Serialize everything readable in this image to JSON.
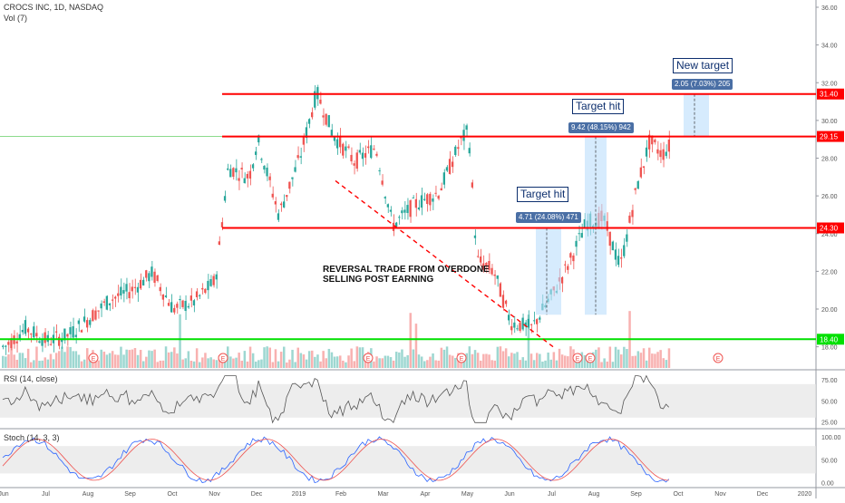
{
  "header": {
    "title": "CROCS INC, 1D, NASDAQ",
    "volume_label": "Vol (7)"
  },
  "indicators": {
    "rsi_label": "RSI (14, close)",
    "stoch_label": "Stoch (14, 3, 3)"
  },
  "annotations": {
    "reversal_line1": "REVERSAL TRADE FROM OVERDONE",
    "reversal_line2": "SELLING POST EARNING",
    "target1_label": "Target hit",
    "target1_measure": "4.71 (24.08%) 471",
    "target2_label": "Target hit",
    "target2_measure": "9.42 (48.15%) 942",
    "target3_label": "New target",
    "target3_measure": "2.05 (7.03%) 205"
  },
  "colors": {
    "up": "#26a69a",
    "down": "#ef5350",
    "resistance": "#ff0000",
    "support": "#00e000",
    "measure_box": "#bbdefb",
    "label_bg": "#4a6fa5"
  },
  "chart_data": {
    "type": "candlestick",
    "price_axis": {
      "ylim": [
        17.2,
        36.4
      ],
      "ticks": [
        "36.00",
        "34.00",
        "32.00",
        "30.00",
        "28.00",
        "26.00",
        "24.00",
        "22.00",
        "20.00",
        "18.00"
      ]
    },
    "time_axis": [
      "Jun",
      "Jul",
      "Aug",
      "Sep",
      "Oct",
      "Nov",
      "Dec",
      "2019",
      "Feb",
      "Mar",
      "Apr",
      "May",
      "Jun",
      "Jul",
      "Aug",
      "Sep",
      "Oct",
      "Nov",
      "Dec",
      "2020"
    ],
    "levels": [
      {
        "price": 31.4,
        "label": "31.40",
        "color": "resistance"
      },
      {
        "price": 29.15,
        "label": "29.15",
        "color": "resistance"
      },
      {
        "price": 24.3,
        "label": "24.30",
        "color": "resistance"
      },
      {
        "price": 18.4,
        "label": "18.40",
        "color": "support"
      }
    ],
    "close_series_anchor": [
      {
        "m": 0,
        "p": 18.0
      },
      {
        "m": 0.5,
        "p": 19.0
      },
      {
        "m": 1,
        "p": 18.3
      },
      {
        "m": 1.5,
        "p": 18.6
      },
      {
        "m": 2,
        "p": 19.5
      },
      {
        "m": 2.5,
        "p": 20.5
      },
      {
        "m": 3,
        "p": 21.0
      },
      {
        "m": 3.5,
        "p": 21.9
      },
      {
        "m": 4,
        "p": 20.0
      },
      {
        "m": 4.5,
        "p": 20.4
      },
      {
        "m": 5,
        "p": 21.5
      },
      {
        "m": 5.3,
        "p": 27.5
      },
      {
        "m": 5.8,
        "p": 27.0
      },
      {
        "m": 6,
        "p": 29.0
      },
      {
        "m": 6.5,
        "p": 25.0
      },
      {
        "m": 7,
        "p": 28.0
      },
      {
        "m": 7.4,
        "p": 31.5
      },
      {
        "m": 7.8,
        "p": 29.2
      },
      {
        "m": 8.3,
        "p": 27.8
      },
      {
        "m": 8.8,
        "p": 28.6
      },
      {
        "m": 9.2,
        "p": 24.4
      },
      {
        "m": 9.7,
        "p": 25.5
      },
      {
        "m": 10.3,
        "p": 26.2
      },
      {
        "m": 10.8,
        "p": 28.8
      },
      {
        "m": 11.0,
        "p": 29.5
      },
      {
        "m": 11.2,
        "p": 22.6
      },
      {
        "m": 11.6,
        "p": 22.0
      },
      {
        "m": 12.0,
        "p": 19.3
      },
      {
        "m": 12.5,
        "p": 19.0
      },
      {
        "m": 13.0,
        "p": 20.8
      },
      {
        "m": 13.4,
        "p": 22.5
      },
      {
        "m": 13.8,
        "p": 24.6
      },
      {
        "m": 14.2,
        "p": 24.8
      },
      {
        "m": 14.6,
        "p": 22.2
      },
      {
        "m": 15.0,
        "p": 26.5
      },
      {
        "m": 15.3,
        "p": 28.9
      },
      {
        "m": 15.6,
        "p": 28.2
      },
      {
        "m": 15.9,
        "p": 29.0
      }
    ],
    "rsi": {
      "ylim": [
        20,
        85
      ],
      "ticks": [
        "75.00",
        "50.00",
        "25.00"
      ],
      "band": [
        30,
        70
      ]
    },
    "stoch": {
      "ylim": [
        -5,
        110
      ],
      "ticks": [
        "100.00",
        "50.00",
        "0.00"
      ],
      "band": [
        20,
        80
      ]
    }
  }
}
